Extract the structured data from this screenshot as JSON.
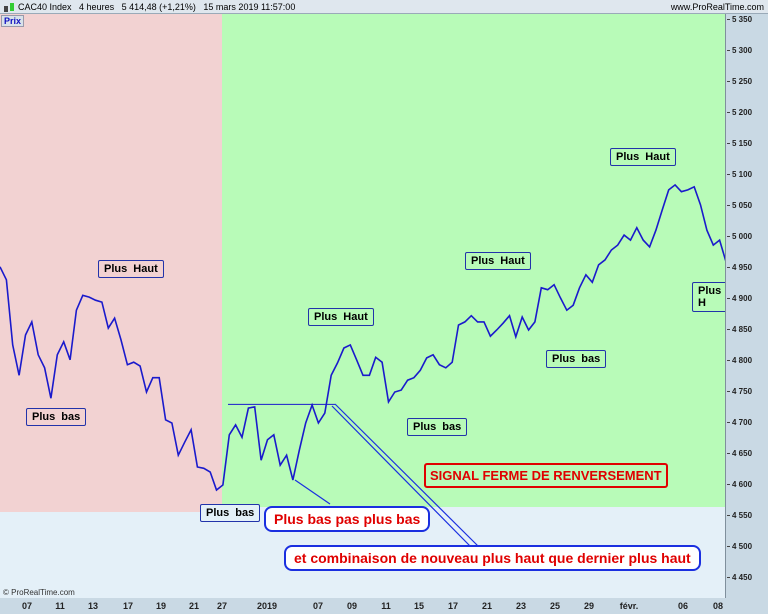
{
  "header": {
    "instrument": "CAC40 Index",
    "timeframe": "4 heures",
    "last_price": "5 414,48 (+1,21%)",
    "datetime": "15 mars 2019 11:57:00",
    "brand": "www.ProRealTime.com"
  },
  "panel": {
    "label": "Prix",
    "copyright": "© ProRealTime.com"
  },
  "colors": {
    "bearish_zone": "#f2d2d2",
    "bullish_zone": "#b8fbb8",
    "line": "#1a1acc",
    "signal": "#e00000"
  },
  "annotations": {
    "plus_haut": "Plus Haut",
    "plus_bas": "Plus bas",
    "plus_haut_cut": "Plus H",
    "signal": "SIGNAL FERME DE RENVERSEMENT",
    "callout1": "Plus bas pas plus bas",
    "callout2": "et combinaison de nouveau plus haut que dernier plus haut"
  },
  "y_axis": {
    "ticks": [
      "5 350",
      "5 300",
      "5 250",
      "5 200",
      "5 150",
      "5 100",
      "5 050",
      "5 000",
      "4 950",
      "4 900",
      "4 850",
      "4 800",
      "4 750",
      "4 700",
      "4 650",
      "4 600",
      "4 550",
      "4 500",
      "4 450"
    ]
  },
  "x_axis": {
    "ticks": [
      "07",
      "11",
      "13",
      "17",
      "19",
      "21",
      "27",
      "2019",
      "07",
      "09",
      "11",
      "15",
      "17",
      "21",
      "23",
      "25",
      "29",
      "févr.",
      "06",
      "08"
    ]
  },
  "chart_data": {
    "type": "line",
    "ylim": [
      4430,
      5360
    ],
    "level_line": 4730,
    "values": [
      4952,
      4931,
      4826,
      4777,
      4842,
      4863,
      4810,
      4789,
      4740,
      4810,
      4831,
      4802,
      4882,
      4906,
      4903,
      4898,
      4895,
      4853,
      4869,
      4834,
      4794,
      4798,
      4792,
      4750,
      4773,
      4773,
      4705,
      4700,
      4648,
      4669,
      4689,
      4629,
      4627,
      4621,
      4592,
      4600,
      4681,
      4697,
      4677,
      4724,
      4726,
      4640,
      4673,
      4681,
      4632,
      4648,
      4608,
      4656,
      4700,
      4729,
      4700,
      4716,
      4777,
      4797,
      4821,
      4826,
      4802,
      4777,
      4777,
      4806,
      4798,
      4734,
      4750,
      4753,
      4769,
      4773,
      4785,
      4805,
      4810,
      4794,
      4789,
      4798,
      4858,
      4863,
      4873,
      4863,
      4863,
      4840,
      4850,
      4861,
      4873,
      4839,
      4871,
      4850,
      4863,
      4918,
      4915,
      4923,
      4902,
      4882,
      4890,
      4918,
      4939,
      4927,
      4955,
      4963,
      4979,
      4987,
      5003,
      4995,
      5015,
      4995,
      4984,
      5011,
      5044,
      5076,
      5084,
      5073,
      5076,
      5081,
      5052,
      5011,
      4987,
      4995,
      4960
    ]
  }
}
